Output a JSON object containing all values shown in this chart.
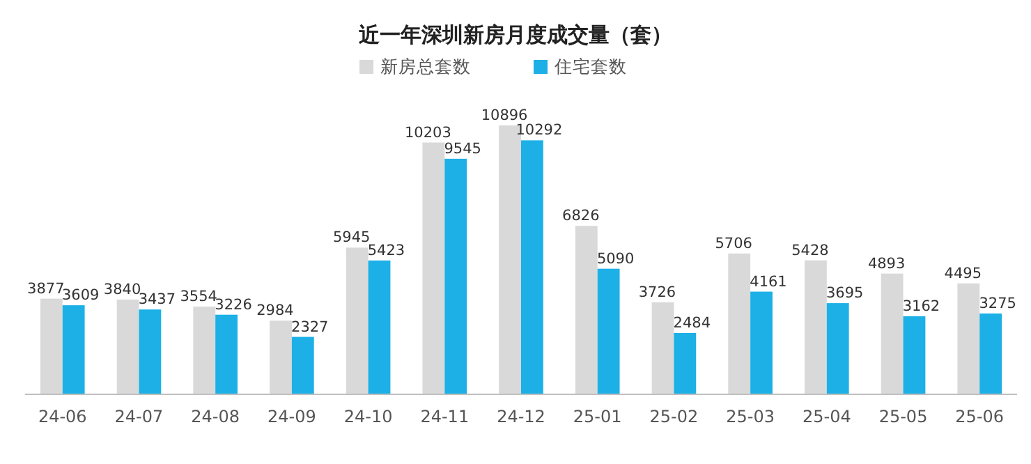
{
  "chart_data": {
    "type": "bar",
    "title": "近一年深圳新房月度成交量（套）",
    "categories": [
      "24-06",
      "24-07",
      "24-08",
      "24-09",
      "24-10",
      "24-11",
      "24-12",
      "25-01",
      "25-02",
      "25-03",
      "25-04",
      "25-05",
      "25-06"
    ],
    "series": [
      {
        "name": "新房总套数",
        "color": "#d9d9d9",
        "values": [
          3877,
          3840,
          3554,
          2984,
          5945,
          10203,
          10896,
          6826,
          3726,
          5706,
          5428,
          4893,
          4495
        ]
      },
      {
        "name": "住宅套数",
        "color": "#1cb0e6",
        "values": [
          3609,
          3437,
          3226,
          2327,
          5423,
          9545,
          10292,
          5090,
          2484,
          4161,
          3695,
          3162,
          3275
        ]
      }
    ],
    "data_labels": true,
    "legend": "top",
    "tick_labels": "x"
  }
}
